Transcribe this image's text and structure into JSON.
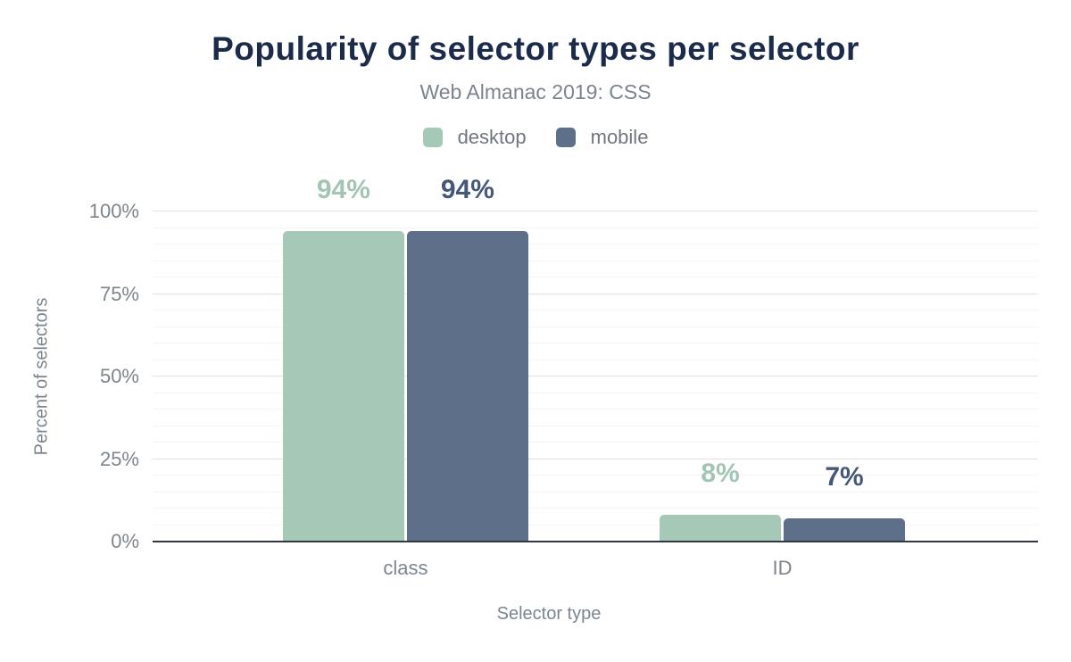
{
  "chart_data": {
    "type": "bar",
    "title": "Popularity of selector types per selector",
    "subtitle": "Web Almanac 2019: CSS",
    "categories": [
      "class",
      "ID"
    ],
    "series": [
      {
        "name": "desktop",
        "color": "#a6c9b7",
        "label_color": "#a2c6b3",
        "values": [
          94,
          8
        ],
        "data_labels": [
          "94%",
          "8%"
        ]
      },
      {
        "name": "mobile",
        "color": "#5e7089",
        "label_color": "#46587a",
        "values": [
          94,
          7
        ],
        "data_labels": [
          "94%",
          "7%"
        ]
      }
    ],
    "xlabel": "Selector type",
    "ylabel": "Percent of selectors",
    "ylim": [
      0,
      100
    ],
    "y_tick_step": 25,
    "y_minor_grid_step": 5,
    "y_tick_labels": [
      "0%",
      "25%",
      "50%",
      "75%",
      "100%"
    ],
    "grid": "on",
    "legend_position": "top"
  },
  "palette": {
    "background": "#ffffff",
    "title_color": "#1c2b49",
    "subtitle_color": "#7b848c",
    "legend_text_color": "#6e767e",
    "axis_text_color": "#7d858d",
    "axis_line_color": "#31383f",
    "major_gridline_color": "#e2e2e2",
    "minor_gridline_color": "#f4f4f4"
  }
}
